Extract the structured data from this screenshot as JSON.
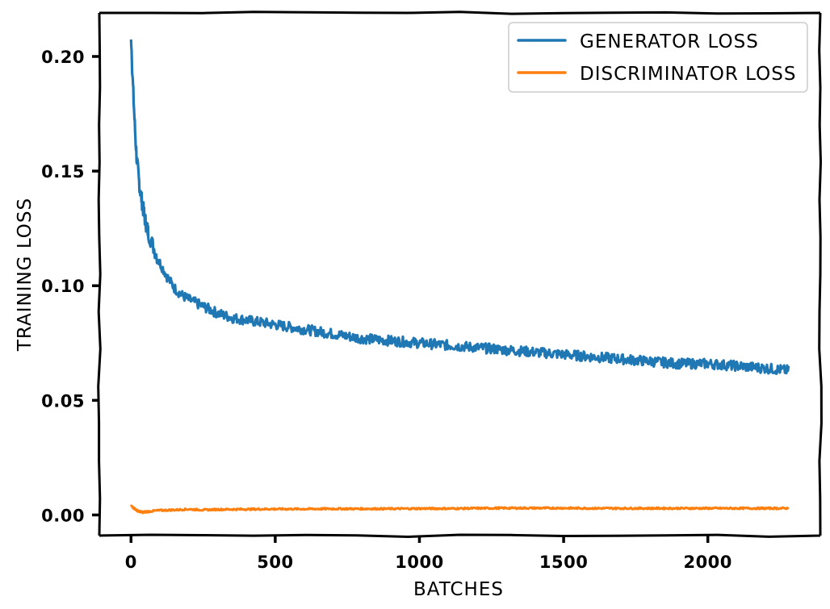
{
  "chart_data": {
    "type": "line",
    "title": "",
    "xlabel": "BATCHES",
    "ylabel": "TRAINING LOSS",
    "xlim": [
      -110,
      2390
    ],
    "ylim": [
      -0.009,
      0.219
    ],
    "x_ticks": [
      0,
      500,
      1000,
      1500,
      2000
    ],
    "x_tick_labels": [
      "0",
      "500",
      "1000",
      "1500",
      "2000"
    ],
    "y_ticks": [
      0.0,
      0.05,
      0.1,
      0.15,
      0.2
    ],
    "y_tick_labels": [
      "0.00",
      "0.05",
      "0.10",
      "0.15",
      "0.20"
    ],
    "grid": false,
    "legend_position": "top-right",
    "series": [
      {
        "name": "GENERATOR LOSS",
        "color": "#1f77b4",
        "x": [
          0,
          5,
          10,
          15,
          20,
          30,
          40,
          50,
          60,
          80,
          100,
          125,
          150,
          175,
          200,
          250,
          300,
          350,
          400,
          450,
          500,
          600,
          700,
          800,
          900,
          1000,
          1100,
          1200,
          1300,
          1400,
          1500,
          1600,
          1700,
          1800,
          1900,
          2000,
          2100,
          2200,
          2280
        ],
        "values": [
          0.21,
          0.192,
          0.178,
          0.165,
          0.155,
          0.143,
          0.135,
          0.128,
          0.123,
          0.116,
          0.11,
          0.104,
          0.099,
          0.096,
          0.094,
          0.091,
          0.088,
          0.086,
          0.085,
          0.084,
          0.083,
          0.081,
          0.079,
          0.077,
          0.076,
          0.075,
          0.074,
          0.073,
          0.072,
          0.071,
          0.07,
          0.069,
          0.068,
          0.067,
          0.066,
          0.066,
          0.065,
          0.064,
          0.063
        ]
      },
      {
        "name": "DISCRIMINATOR LOSS",
        "color": "#ff7f0e",
        "x": [
          0,
          10,
          20,
          30,
          40,
          60,
          80,
          100,
          150,
          200,
          250,
          300,
          400,
          500,
          600,
          700,
          800,
          900,
          1000,
          1100,
          1200,
          1300,
          1400,
          1500,
          1600,
          1700,
          1800,
          1900,
          2000,
          2100,
          2200,
          2280
        ],
        "values": [
          0.004,
          0.003,
          0.002,
          0.0015,
          0.0012,
          0.0015,
          0.0018,
          0.002,
          0.0022,
          0.0025,
          0.0022,
          0.0024,
          0.0025,
          0.0026,
          0.0026,
          0.0027,
          0.0027,
          0.0027,
          0.0028,
          0.0028,
          0.0029,
          0.003,
          0.003,
          0.003,
          0.0029,
          0.0029,
          0.0029,
          0.0029,
          0.0029,
          0.0029,
          0.0029,
          0.0029
        ]
      }
    ]
  }
}
